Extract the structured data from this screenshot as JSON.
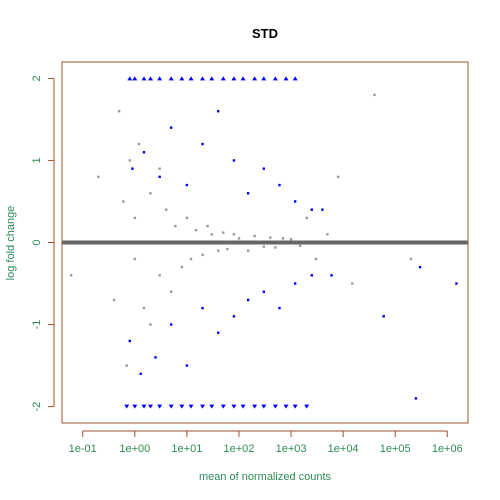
{
  "chart_data": {
    "type": "scatter",
    "title": "STD",
    "xlabel": "mean of normalized counts",
    "ylabel": "log fold change",
    "x_scale": "log10",
    "xlim": [
      0.04,
      2500000
    ],
    "ylim": [
      -2.2,
      2.2
    ],
    "x_ticks": [
      {
        "value": 0.1,
        "label": "1e-01"
      },
      {
        "value": 1,
        "label": "1e+00"
      },
      {
        "value": 10,
        "label": "1e+01"
      },
      {
        "value": 100,
        "label": "1e+02"
      },
      {
        "value": 1000,
        "label": "1e+03"
      },
      {
        "value": 10000,
        "label": "1e+04"
      },
      {
        "value": 100000,
        "label": "1e+05"
      },
      {
        "value": 1000000,
        "label": "1e+06"
      }
    ],
    "y_ticks": [
      {
        "value": -2,
        "label": "-2"
      },
      {
        "value": -1,
        "label": "-1"
      },
      {
        "value": 0,
        "label": "0"
      },
      {
        "value": 1,
        "label": "1"
      },
      {
        "value": 2,
        "label": "2"
      }
    ],
    "reference_line": {
      "y": 0,
      "color": "#666666"
    },
    "grid": false,
    "colors": {
      "not_significant": "#999999",
      "significant": "#0000ff",
      "capped_not_significant": "#87a8d0",
      "capped_significant": "#0000ff",
      "axis_text": "#2e8b57",
      "box": "#a0522d"
    },
    "series": [
      {
        "role": "not-significant",
        "color": "#999999",
        "x": [
          0.06,
          0.09,
          0.2,
          0.4,
          0.5,
          0.6,
          0.7,
          0.8,
          1,
          1,
          1.2,
          1.5,
          2,
          2,
          3,
          3,
          4,
          5,
          6,
          8,
          10,
          12,
          15,
          20,
          25,
          30,
          40,
          50,
          60,
          80,
          100,
          150,
          200,
          300,
          400,
          500,
          700,
          1000,
          1500,
          2000,
          3000,
          5000,
          8000,
          15000,
          40000,
          60000,
          200000
        ],
        "y": [
          -0.4,
          0.0,
          0.8,
          -0.7,
          1.6,
          0.5,
          -1.5,
          1.0,
          0.3,
          -0.2,
          1.2,
          -0.8,
          0.6,
          -1.0,
          0.9,
          -0.4,
          0.4,
          -0.6,
          0.2,
          -0.3,
          0.3,
          -0.2,
          0.15,
          -0.15,
          0.2,
          0.1,
          -0.1,
          0.12,
          -0.08,
          0.1,
          0.05,
          -0.1,
          0.08,
          -0.05,
          0.06,
          -0.06,
          0.05,
          0.04,
          -0.04,
          0.3,
          -0.2,
          0.1,
          0.8,
          -0.5,
          1.8,
          -0.9,
          -0.2
        ]
      },
      {
        "role": "significant",
        "color": "#0000ff",
        "x": [
          0.9,
          1.5,
          3,
          5,
          10,
          20,
          40,
          80,
          150,
          300,
          600,
          1200,
          2500,
          4000,
          0.8,
          1.3,
          2.5,
          5,
          10,
          20,
          40,
          80,
          150,
          300,
          600,
          1200,
          2500,
          6000,
          60000,
          300000,
          1500000,
          250000
        ],
        "y": [
          0.9,
          1.1,
          0.8,
          1.4,
          0.7,
          1.2,
          1.6,
          1.0,
          0.6,
          0.9,
          0.7,
          0.5,
          0.4,
          0.4,
          -1.2,
          -1.6,
          -1.4,
          -1.0,
          -1.5,
          -0.8,
          -1.1,
          -0.9,
          -0.7,
          -0.6,
          -0.8,
          -0.5,
          -0.4,
          -0.4,
          -0.9,
          -0.3,
          -0.5,
          -1.9
        ]
      },
      {
        "role": "capped-high",
        "color": "#0000ff",
        "x": [
          0.8,
          1,
          1.5,
          2,
          3,
          5,
          8,
          12,
          20,
          30,
          50,
          80,
          120,
          200,
          300,
          500,
          800,
          1200
        ],
        "y": [
          2,
          2,
          2,
          2,
          2,
          2,
          2,
          2,
          2,
          2,
          2,
          2,
          2,
          2,
          2,
          2,
          2,
          2
        ]
      },
      {
        "role": "capped-low",
        "color": "#0000ff",
        "x": [
          0.7,
          1,
          1.5,
          2,
          3,
          5,
          8,
          12,
          20,
          30,
          50,
          80,
          120,
          200,
          300,
          500,
          800,
          1200,
          2000
        ],
        "y": [
          -2,
          -2,
          -2,
          -2,
          -2,
          -2,
          -2,
          -2,
          -2,
          -2,
          -2,
          -2,
          -2,
          -2,
          -2,
          -2,
          -2,
          -2,
          -2
        ]
      }
    ]
  }
}
